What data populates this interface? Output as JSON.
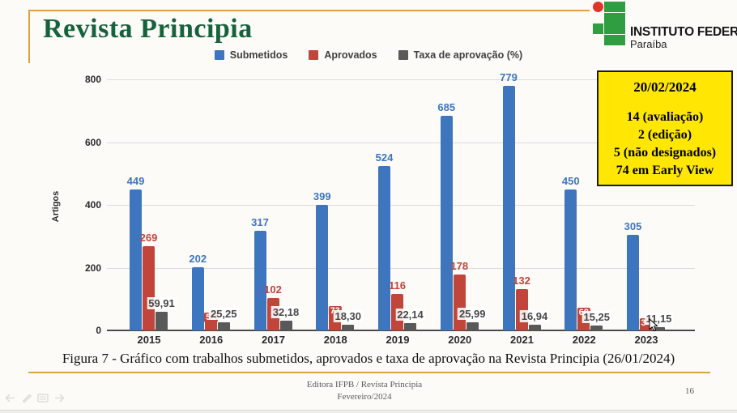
{
  "slide": {
    "title": "Revista Principia",
    "caption": "Figura 7 - Gráfico com trabalhos submetidos, aprovados e taxa de aprovação na Revista Principia (26/01/2024)",
    "footer_line1": "Editora IFPB / Revista Principia",
    "footer_line2": "Fevereiro/2024",
    "page_number": "16"
  },
  "logo": {
    "line1": "INSTITUTO FEDERAL",
    "line2": "Paraíba",
    "green": "#2f9e41",
    "red": "#e3342b"
  },
  "note_box": {
    "date": "20/02/2024",
    "lines": [
      "14 (avaliação)",
      "2 (edição)",
      "5 (não designados)",
      "74 em Early View"
    ],
    "bg": "#ffe703"
  },
  "chart_data": {
    "type": "bar",
    "title": "",
    "xlabel": "",
    "ylabel": "Artigos",
    "ylim": [
      0,
      800
    ],
    "yticks": [
      0,
      200,
      400,
      600,
      800
    ],
    "grid": true,
    "legend_position": "top",
    "categories": [
      "2015",
      "2016",
      "2017",
      "2018",
      "2019",
      "2020",
      "2021",
      "2022",
      "2023"
    ],
    "series": [
      {
        "name": "Submetidos",
        "color": "#3d76be",
        "values": [
          449,
          202,
          317,
          399,
          524,
          685,
          779,
          450,
          305
        ]
      },
      {
        "name": "Aprovados",
        "color": "#c1453a",
        "values": [
          269,
          51,
          102,
          73,
          116,
          178,
          132,
          68,
          34
        ]
      },
      {
        "name": "Taxa de aprovação (%)",
        "color": "#595959",
        "values": [
          59.91,
          25.25,
          32.18,
          18.3,
          22.14,
          25.99,
          16.94,
          15.25,
          11.15
        ],
        "labels": [
          "59,91",
          "25,25",
          "32,18",
          "18,30",
          "22,14",
          "25,99",
          "16,94",
          "15,25",
          "11,15"
        ]
      }
    ]
  },
  "presenter_controls": {
    "icons": [
      "previous-slide",
      "pen",
      "show-all-slides",
      "next-slide"
    ]
  }
}
